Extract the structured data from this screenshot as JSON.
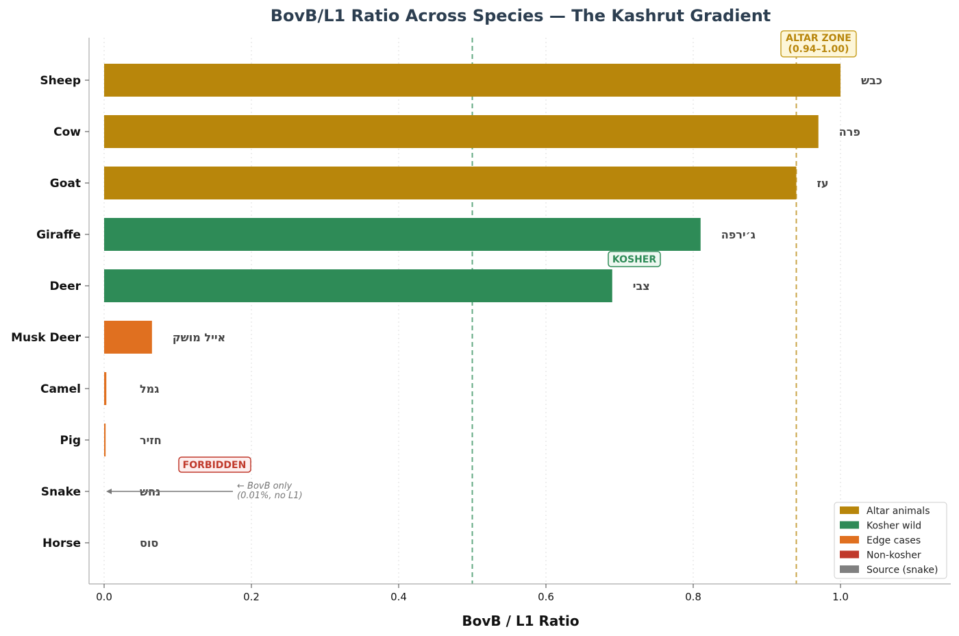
{
  "chart_data": {
    "type": "bar",
    "orientation": "horizontal",
    "title": "BovB/L1 Ratio Across Species — The Kashrut Gradient",
    "xlabel": "BovB / L1 Ratio",
    "ylabel": "",
    "xlim": [
      -0.02,
      1.15
    ],
    "xticks": [
      "0.0",
      "0.2",
      "0.4",
      "0.6",
      "0.8",
      "1.0"
    ],
    "xtick_values": [
      0,
      0.2,
      0.4,
      0.6,
      0.8,
      1.0
    ],
    "grid": "vertical dotted",
    "legend_position": "bottom-right",
    "categories": [
      "Sheep",
      "Cow",
      "Goat",
      "Giraffe",
      "Deer",
      "Musk Deer",
      "Camel",
      "Pig",
      "Snake",
      "Horse"
    ],
    "hebrew_labels": [
      "כבש",
      "פרה",
      "עז",
      "ג׳ירפה",
      "צבי",
      "אייל מושק",
      "גמל",
      "חזיר",
      "נחש",
      "סוס"
    ],
    "values": [
      1.0,
      0.97,
      0.94,
      0.81,
      0.69,
      0.065,
      0.003,
      0.002,
      0.0,
      0.0
    ],
    "groups": [
      "Altar animals",
      "Altar animals",
      "Altar animals",
      "Kosher wild",
      "Kosher wild",
      "Edge cases",
      "Edge cases",
      "Edge cases",
      "Source (snake)",
      "Non-kosher"
    ],
    "legend": [
      {
        "label": "Altar animals",
        "color": "#b8860b"
      },
      {
        "label": "Kosher wild",
        "color": "#2e8b57"
      },
      {
        "label": "Edge cases",
        "color": "#e07020"
      },
      {
        "label": "Non-kosher",
        "color": "#c0392b"
      },
      {
        "label": "Source (snake)",
        "color": "#808080"
      }
    ],
    "reference_lines": [
      {
        "x": 0.5,
        "color": "#2e8b57",
        "label": "KOSHER"
      },
      {
        "x": 0.94,
        "color": "#b8860b",
        "label": "ALTAR ZONE\n(0.94–1.00)"
      }
    ],
    "annotations": {
      "altar_zone_line1": "ALTAR ZONE",
      "altar_zone_line2": "(0.94–1.00)",
      "kosher": "KOSHER",
      "forbidden": "FORBIDDEN",
      "snake_note_line1": "← BovB only",
      "snake_note_line2": "(0.01%, no L1)"
    }
  }
}
